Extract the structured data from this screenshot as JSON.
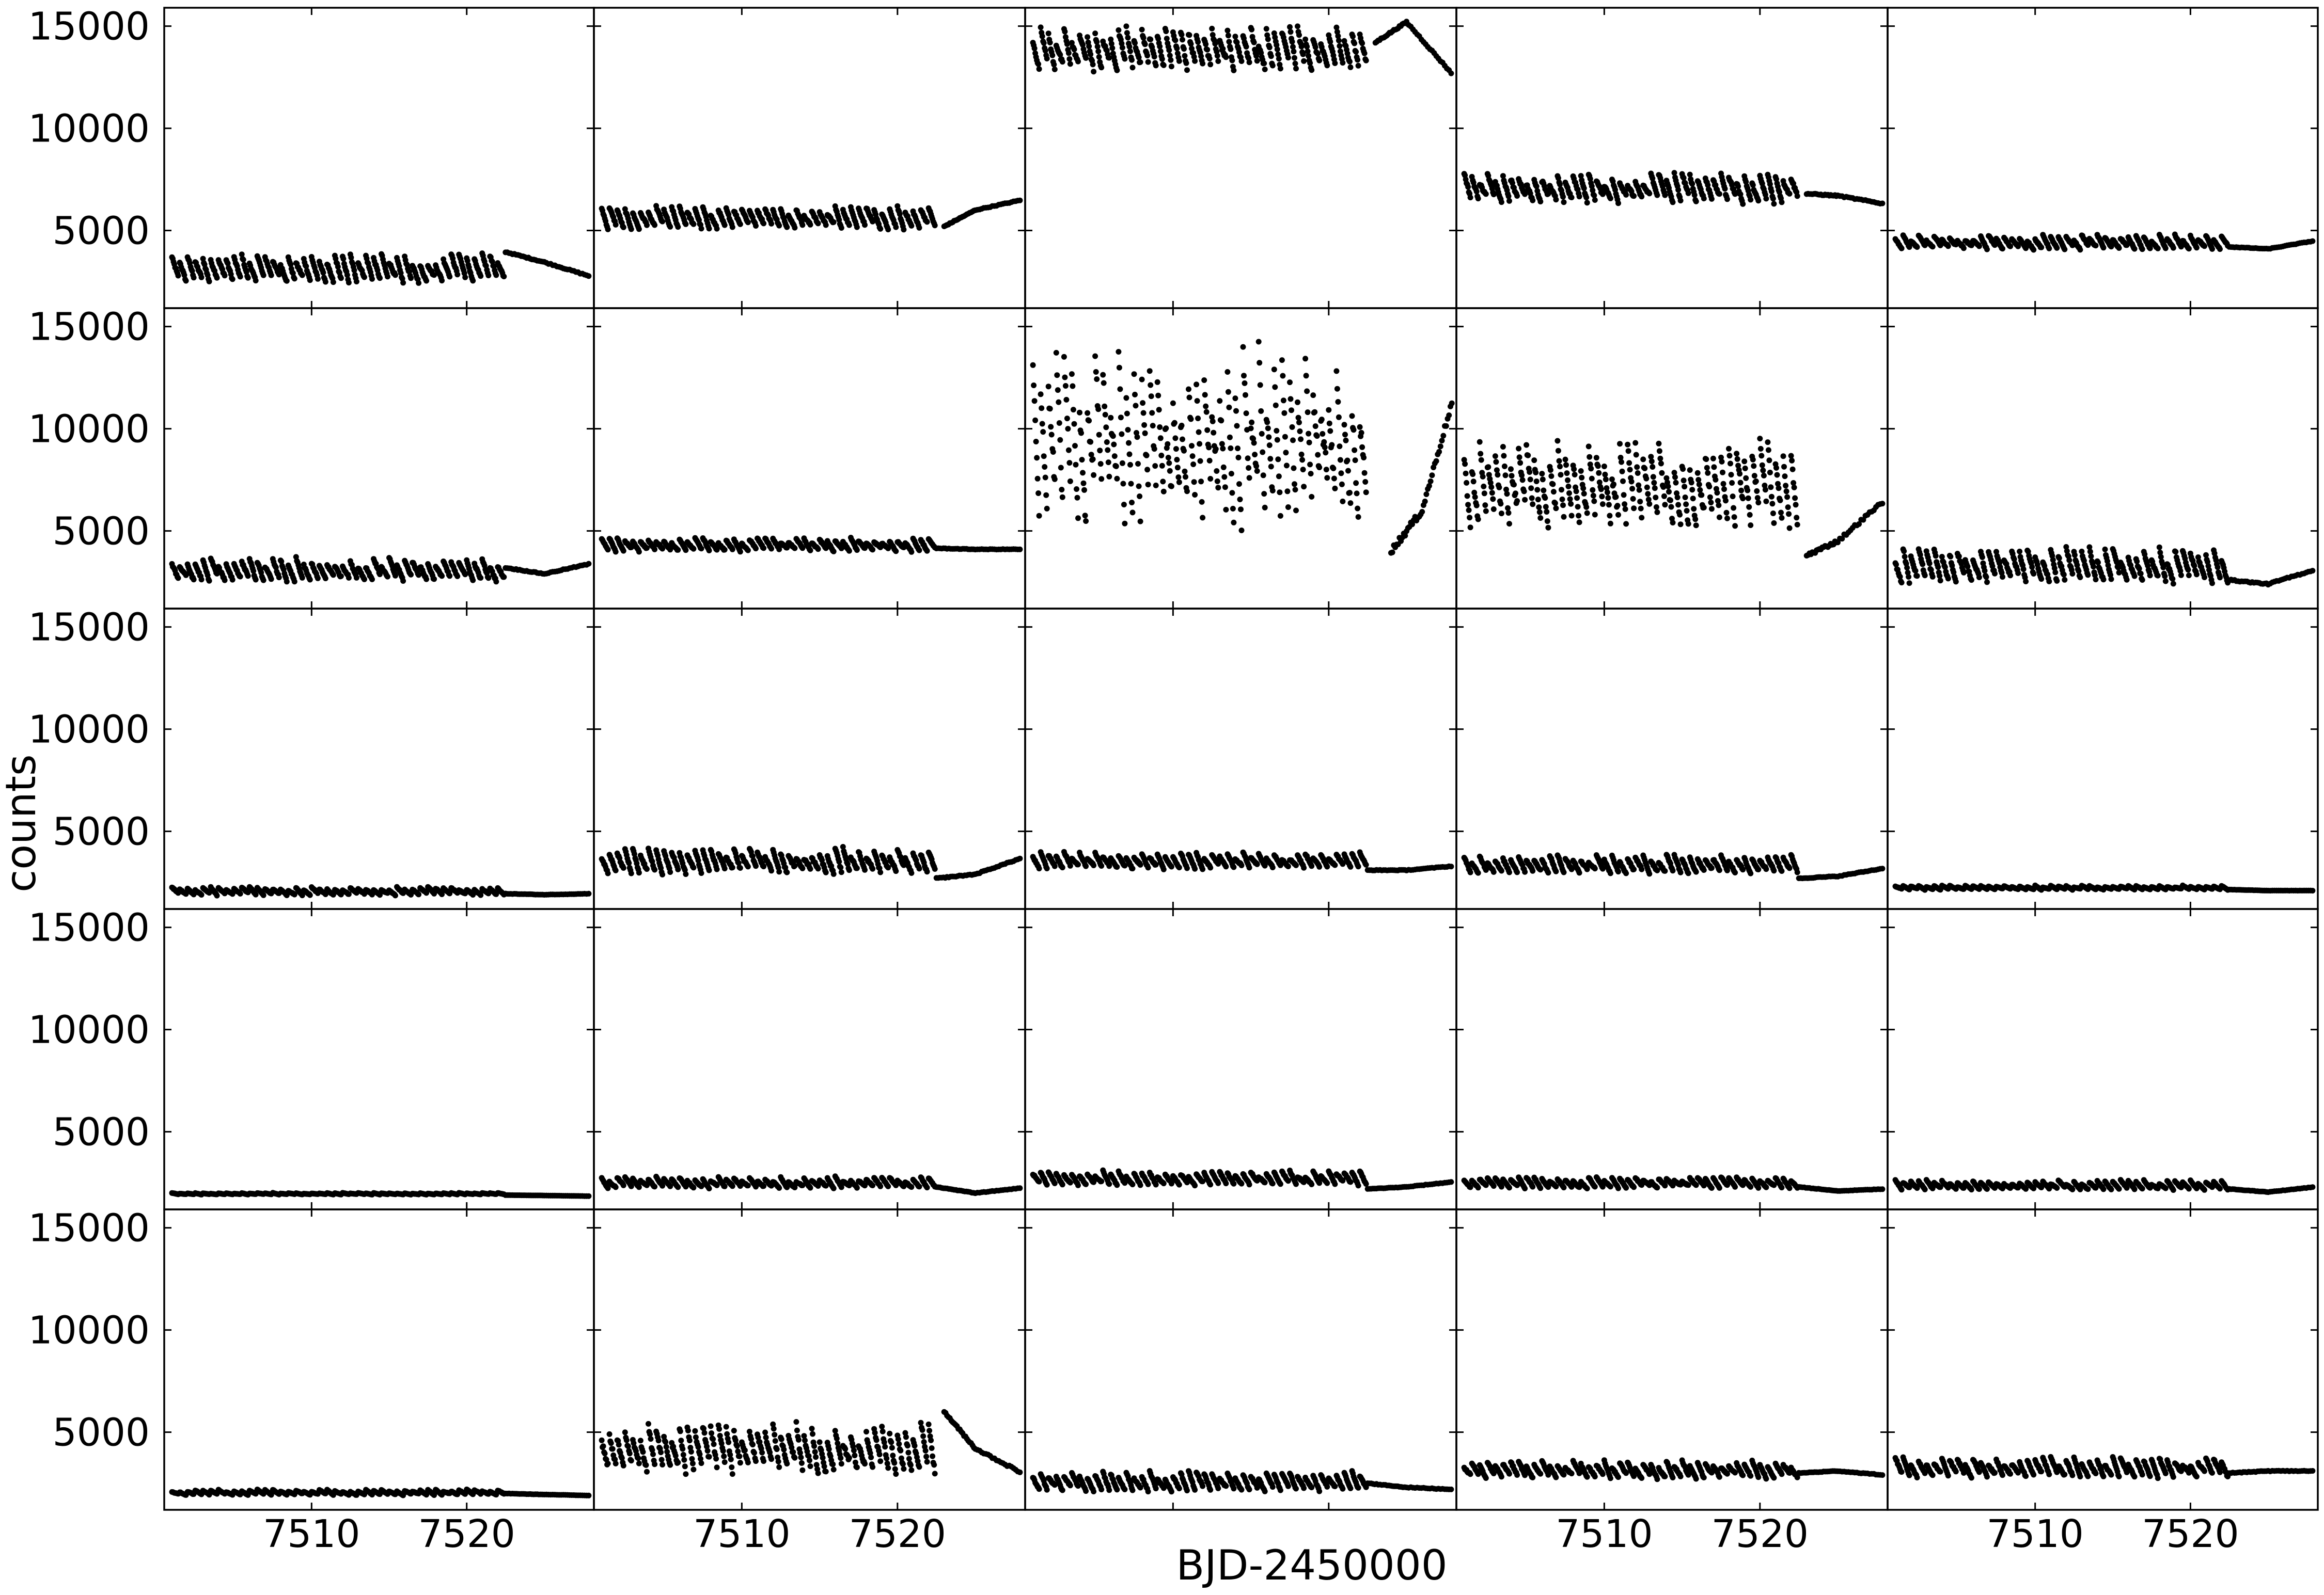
{
  "chart_data": {
    "type": "scatter",
    "layout": {
      "rows": 5,
      "cols": 5,
      "sharex": true,
      "sharey": true
    },
    "xlabel": "BJD-2450000",
    "ylabel": "counts",
    "xlim": [
      7500.5,
      7528.2
    ],
    "ylim": [
      1200,
      15900
    ],
    "xticks": [
      7510,
      7520
    ],
    "xtick_labels": [
      "7510",
      "7520"
    ],
    "yticks": [
      5000,
      10000,
      15000
    ],
    "ytick_labels": [
      "5000",
      "10000",
      "15000"
    ],
    "marker_color": "#000000",
    "grid": false,
    "legend": "none",
    "panels": [
      {
        "row": 1,
        "col": 1,
        "base": 2900,
        "amp": 1000,
        "tail": [
          [
            7522.5,
            3950
          ],
          [
            7525,
            3450
          ],
          [
            7528,
            2750
          ]
        ]
      },
      {
        "row": 1,
        "col": 2,
        "base": 5400,
        "amp": 800,
        "tail": [
          [
            7523,
            5200
          ],
          [
            7525,
            6000
          ],
          [
            7528,
            6500
          ]
        ]
      },
      {
        "row": 1,
        "col": 3,
        "base": 13500,
        "amp": 1500,
        "tail": [
          [
            7523,
            14200
          ],
          [
            7525,
            15200
          ],
          [
            7528,
            12600
          ]
        ]
      },
      {
        "row": 1,
        "col": 4,
        "base": 6800,
        "amp": 1100,
        "tail": [
          [
            7523,
            6800
          ],
          [
            7525,
            6700
          ],
          [
            7528,
            6300
          ]
        ]
      },
      {
        "row": 1,
        "col": 5,
        "base": 4300,
        "amp": 500,
        "tail": [
          [
            7522.5,
            4200
          ],
          [
            7525,
            4100
          ],
          [
            7528,
            4500
          ]
        ]
      },
      {
        "row": 2,
        "col": 1,
        "base": 2900,
        "amp": 800,
        "tail": [
          [
            7522.5,
            3200
          ],
          [
            7525,
            2900
          ],
          [
            7528,
            3400
          ]
        ]
      },
      {
        "row": 2,
        "col": 2,
        "base": 4200,
        "amp": 500,
        "tail": [
          [
            7522.5,
            4150
          ],
          [
            7525,
            4100
          ],
          [
            7528,
            4100
          ]
        ]
      },
      {
        "row": 2,
        "col": 3,
        "base": 8000,
        "amp": 6000,
        "tail": [
          [
            7524,
            4000
          ],
          [
            7526,
            6000
          ],
          [
            7528,
            11500
          ]
        ]
      },
      {
        "row": 2,
        "col": 4,
        "base": 6500,
        "amp": 3000,
        "tail": [
          [
            7523,
            3800
          ],
          [
            7525,
            4500
          ],
          [
            7528,
            6500
          ]
        ]
      },
      {
        "row": 2,
        "col": 5,
        "base": 3000,
        "amp": 1200,
        "tail": [
          [
            7522.5,
            2600
          ],
          [
            7525,
            2400
          ],
          [
            7528,
            3100
          ]
        ]
      },
      {
        "row": 3,
        "col": 1,
        "base": 2000,
        "amp": 300,
        "tail": [
          [
            7522.5,
            1950
          ],
          [
            7525,
            1900
          ],
          [
            7528,
            1950
          ]
        ]
      },
      {
        "row": 3,
        "col": 2,
        "base": 3300,
        "amp": 900,
        "tail": [
          [
            7522.5,
            2700
          ],
          [
            7525,
            2900
          ],
          [
            7528,
            3700
          ]
        ]
      },
      {
        "row": 3,
        "col": 3,
        "base": 3400,
        "amp": 600,
        "tail": [
          [
            7522.5,
            3100
          ],
          [
            7525,
            3100
          ],
          [
            7528,
            3300
          ]
        ]
      },
      {
        "row": 3,
        "col": 4,
        "base": 3200,
        "amp": 700,
        "tail": [
          [
            7522.5,
            2700
          ],
          [
            7525,
            2800
          ],
          [
            7528,
            3200
          ]
        ]
      },
      {
        "row": 3,
        "col": 5,
        "base": 2200,
        "amp": 150,
        "tail": [
          [
            7522.5,
            2150
          ],
          [
            7525,
            2100
          ],
          [
            7528,
            2100
          ]
        ]
      },
      {
        "row": 4,
        "col": 1,
        "base": 1950,
        "amp": 60,
        "tail": [
          [
            7522.5,
            1900
          ],
          [
            7525,
            1880
          ],
          [
            7528,
            1850
          ]
        ]
      },
      {
        "row": 4,
        "col": 2,
        "base": 2400,
        "amp": 400,
        "tail": [
          [
            7522.5,
            2300
          ],
          [
            7525,
            2000
          ],
          [
            7528,
            2250
          ]
        ]
      },
      {
        "row": 4,
        "col": 3,
        "base": 2600,
        "amp": 500,
        "tail": [
          [
            7522.5,
            2200
          ],
          [
            7525,
            2300
          ],
          [
            7528,
            2550
          ]
        ]
      },
      {
        "row": 4,
        "col": 4,
        "base": 2400,
        "amp": 400,
        "tail": [
          [
            7522.5,
            2300
          ],
          [
            7525,
            2100
          ],
          [
            7528,
            2200
          ]
        ]
      },
      {
        "row": 4,
        "col": 5,
        "base": 2300,
        "amp": 350,
        "tail": [
          [
            7522.5,
            2200
          ],
          [
            7525,
            2050
          ],
          [
            7528,
            2300
          ]
        ]
      },
      {
        "row": 5,
        "col": 1,
        "base": 2000,
        "amp": 200,
        "tail": [
          [
            7522.5,
            2000
          ],
          [
            7525,
            1950
          ],
          [
            7528,
            1900
          ]
        ]
      },
      {
        "row": 5,
        "col": 2,
        "base": 3700,
        "amp": 1800,
        "tail": [
          [
            7523,
            6000
          ],
          [
            7525,
            4200
          ],
          [
            7528,
            3000
          ]
        ]
      },
      {
        "row": 5,
        "col": 3,
        "base": 2400,
        "amp": 700,
        "tail": [
          [
            7522.5,
            2500
          ],
          [
            7525,
            2300
          ],
          [
            7528,
            2200
          ]
        ]
      },
      {
        "row": 5,
        "col": 4,
        "base": 3000,
        "amp": 600,
        "tail": [
          [
            7522.5,
            3000
          ],
          [
            7525,
            3100
          ],
          [
            7528,
            2900
          ]
        ]
      },
      {
        "row": 5,
        "col": 5,
        "base": 3100,
        "amp": 700,
        "tail": [
          [
            7522.5,
            3000
          ],
          [
            7525,
            3100
          ],
          [
            7528,
            3100
          ]
        ]
      }
    ]
  }
}
